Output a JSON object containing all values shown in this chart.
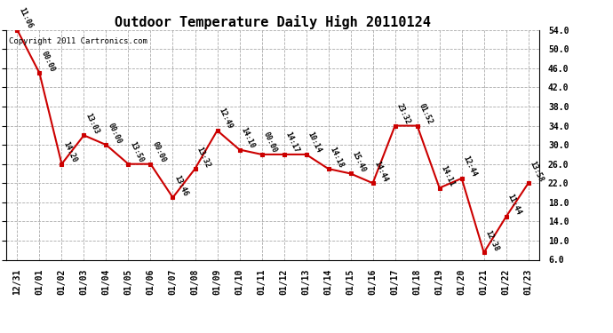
{
  "title": "Outdoor Temperature Daily High 20110124",
  "copyright_text": "Copyright 2011 Cartronics.com",
  "x_labels": [
    "12/31",
    "01/01",
    "01/02",
    "01/03",
    "01/04",
    "01/05",
    "01/06",
    "01/07",
    "01/08",
    "01/09",
    "01/10",
    "01/11",
    "01/12",
    "01/13",
    "01/14",
    "01/15",
    "01/16",
    "01/17",
    "01/18",
    "01/19",
    "01/20",
    "01/21",
    "01/22",
    "01/23"
  ],
  "y_values": [
    54.0,
    45.0,
    26.0,
    32.0,
    30.0,
    26.0,
    26.0,
    19.0,
    25.0,
    33.0,
    29.0,
    28.0,
    28.0,
    28.0,
    25.0,
    24.0,
    22.0,
    34.0,
    34.0,
    21.0,
    23.0,
    7.5,
    15.0,
    22.0
  ],
  "point_labels": [
    "11:06",
    "00:00",
    "14:20",
    "13:03",
    "00:00",
    "13:50",
    "00:00",
    "13:46",
    "13:32",
    "12:49",
    "14:10",
    "00:00",
    "14:17",
    "10:14",
    "14:18",
    "15:40",
    "14:44",
    "23:32",
    "01:52",
    "14:11",
    "12:44",
    "12:38",
    "11:44",
    "13:58"
  ],
  "line_color": "#cc0000",
  "marker_color": "#cc0000",
  "marker_face": "#cc0000",
  "bg_color": "#ffffff",
  "grid_color": "#aaaaaa",
  "ylim_min": 6.0,
  "ylim_max": 54.0,
  "yticks": [
    6.0,
    10.0,
    14.0,
    18.0,
    22.0,
    26.0,
    30.0,
    34.0,
    38.0,
    42.0,
    46.0,
    50.0,
    54.0
  ],
  "title_fontsize": 11,
  "label_fontsize": 6.0,
  "tick_fontsize": 7,
  "copyright_fontsize": 6.5
}
